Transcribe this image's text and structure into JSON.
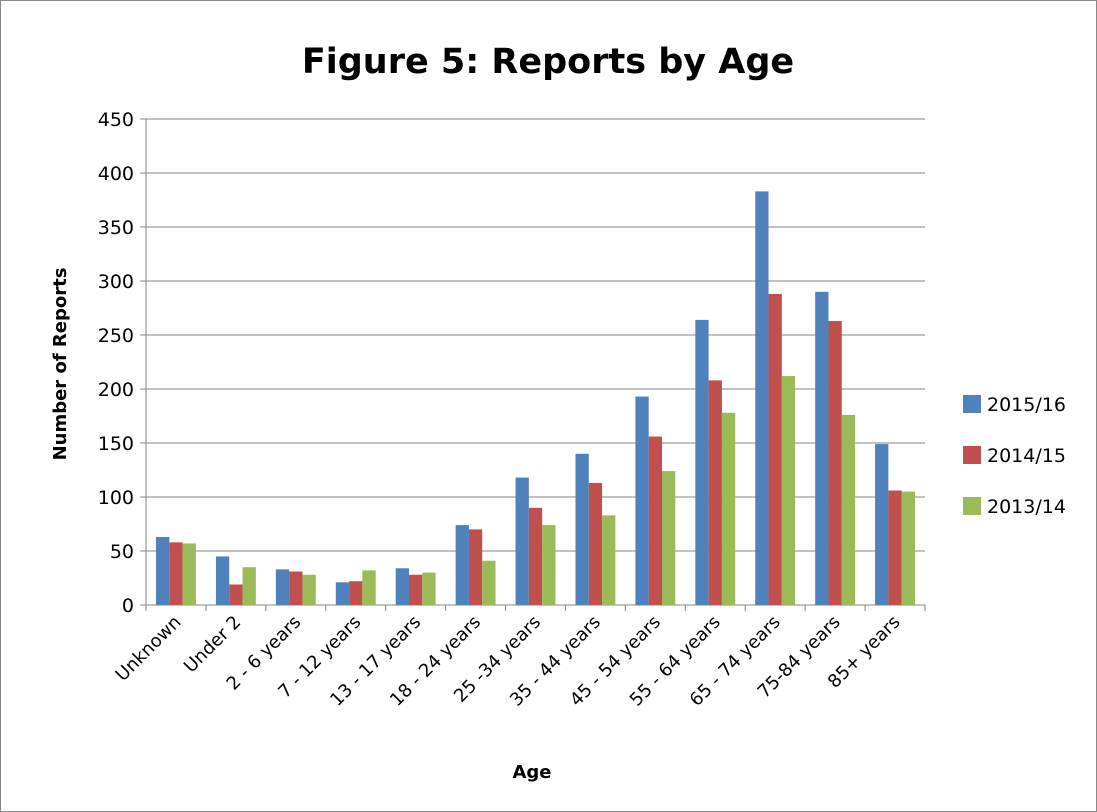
{
  "chart_data": {
    "type": "bar",
    "title": "Figure 5: Reports by Age",
    "xlabel": "Age",
    "ylabel": "Number of Reports",
    "ylim": [
      0,
      450
    ],
    "ytick_step": 50,
    "yticks": [
      "0",
      "50",
      "100",
      "150",
      "200",
      "250",
      "300",
      "350",
      "400",
      "450"
    ],
    "grid": "horizontal",
    "legend_position": "right",
    "categories": [
      "Unknown",
      "Under 2",
      "2 - 6 years",
      "7 - 12 years",
      "13 - 17 years",
      "18 - 24 years",
      "25 -34 years",
      "35 - 44 years",
      "45 - 54 years",
      "55 - 64 years",
      "65 - 74 years",
      "75-84 years",
      "85+ years"
    ],
    "series": [
      {
        "name": "2015/16",
        "color": "#4f81bd",
        "values": [
          63,
          45,
          33,
          21,
          34,
          74,
          118,
          140,
          193,
          264,
          383,
          290,
          149
        ]
      },
      {
        "name": "2014/15",
        "color": "#c0504d",
        "values": [
          58,
          19,
          31,
          22,
          28,
          70,
          90,
          113,
          156,
          208,
          288,
          263,
          106
        ]
      },
      {
        "name": "2013/14",
        "color": "#9bbb59",
        "values": [
          57,
          35,
          28,
          32,
          30,
          41,
          74,
          83,
          124,
          178,
          212,
          176,
          105
        ]
      }
    ]
  }
}
